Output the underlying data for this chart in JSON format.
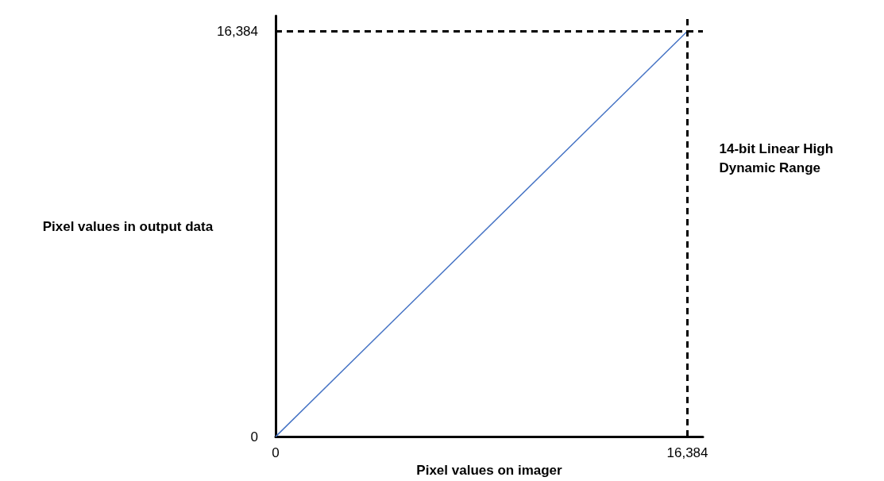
{
  "chart_data": {
    "type": "line",
    "xlabel": "Pixel values on imager",
    "ylabel": "Pixel values in output data",
    "x": [
      0,
      16384
    ],
    "series": [
      {
        "color": "#4472c4",
        "values": [
          0,
          16384
        ]
      }
    ],
    "xlim": [
      0,
      17000
    ],
    "ylim": [
      0,
      17000
    ],
    "xticks": [
      0,
      {
        "value": 16384,
        "label": "16,384"
      }
    ],
    "yticks": [
      0,
      {
        "value": 16384,
        "label": "16,384"
      }
    ],
    "ref_lines": [
      {
        "axis": "x",
        "value": 16384,
        "label": "14-bit Linear High Dynamic Range",
        "color": "#000000",
        "line_style": "dashed"
      },
      {
        "axis": "y",
        "value": 16384,
        "label": null,
        "color": "#000000",
        "line_style": "dashed"
      }
    ],
    "grid": false,
    "marker": "none",
    "line_style": "solid"
  }
}
